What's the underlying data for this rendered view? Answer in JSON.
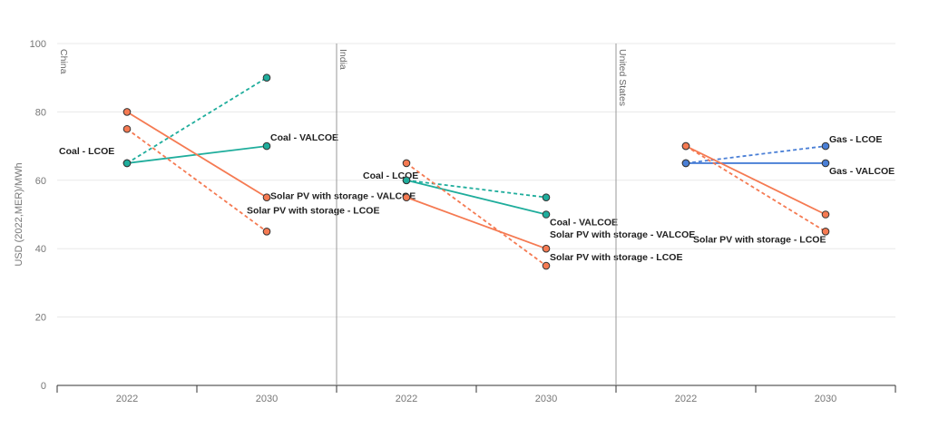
{
  "chart_data": {
    "type": "line",
    "title": "",
    "ylabel": "USD (2022,MER)/MWh",
    "ylim": [
      0,
      100
    ],
    "yticks": [
      0,
      20,
      40,
      60,
      80,
      100
    ],
    "grid": true,
    "categories": [
      "2022",
      "2030"
    ],
    "colors": {
      "coal": "#1fad9c",
      "solar": "#f57a52",
      "gas": "#4a7fd6"
    },
    "panels": [
      {
        "name": "China",
        "series": [
          {
            "name": "Coal - LCOE",
            "color": "coal",
            "dashed": true,
            "values": [
              65,
              90
            ]
          },
          {
            "name": "Coal - VALCOE",
            "color": "coal",
            "dashed": false,
            "values": [
              65,
              70
            ]
          },
          {
            "name": "Solar PV with storage - VALCOE",
            "color": "solar",
            "dashed": false,
            "values": [
              80,
              55
            ]
          },
          {
            "name": "Solar PV with storage - LCOE",
            "color": "solar",
            "dashed": true,
            "values": [
              75,
              45
            ]
          }
        ]
      },
      {
        "name": "India",
        "series": [
          {
            "name": "Coal - LCOE",
            "color": "coal",
            "dashed": true,
            "values": [
              60,
              55
            ]
          },
          {
            "name": "Coal - VALCOE",
            "color": "coal",
            "dashed": false,
            "values": [
              60,
              50
            ]
          },
          {
            "name": "Solar PV with storage - VALCOE",
            "color": "solar",
            "dashed": false,
            "values": [
              55,
              40
            ]
          },
          {
            "name": "Solar PV with storage - LCOE",
            "color": "solar",
            "dashed": true,
            "values": [
              65,
              35
            ]
          }
        ]
      },
      {
        "name": "United States",
        "series": [
          {
            "name": "Gas - LCOE",
            "color": "gas",
            "dashed": true,
            "values": [
              65,
              70
            ]
          },
          {
            "name": "Gas - VALCOE",
            "color": "gas",
            "dashed": false,
            "values": [
              65,
              65
            ]
          },
          {
            "name": "Solar PV with storage - VALCOE",
            "color": "solar",
            "dashed": false,
            "values": [
              70,
              50
            ]
          },
          {
            "name": "Solar PV with storage - LCOE",
            "color": "solar",
            "dashed": true,
            "values": [
              70,
              45
            ]
          }
        ]
      }
    ]
  }
}
